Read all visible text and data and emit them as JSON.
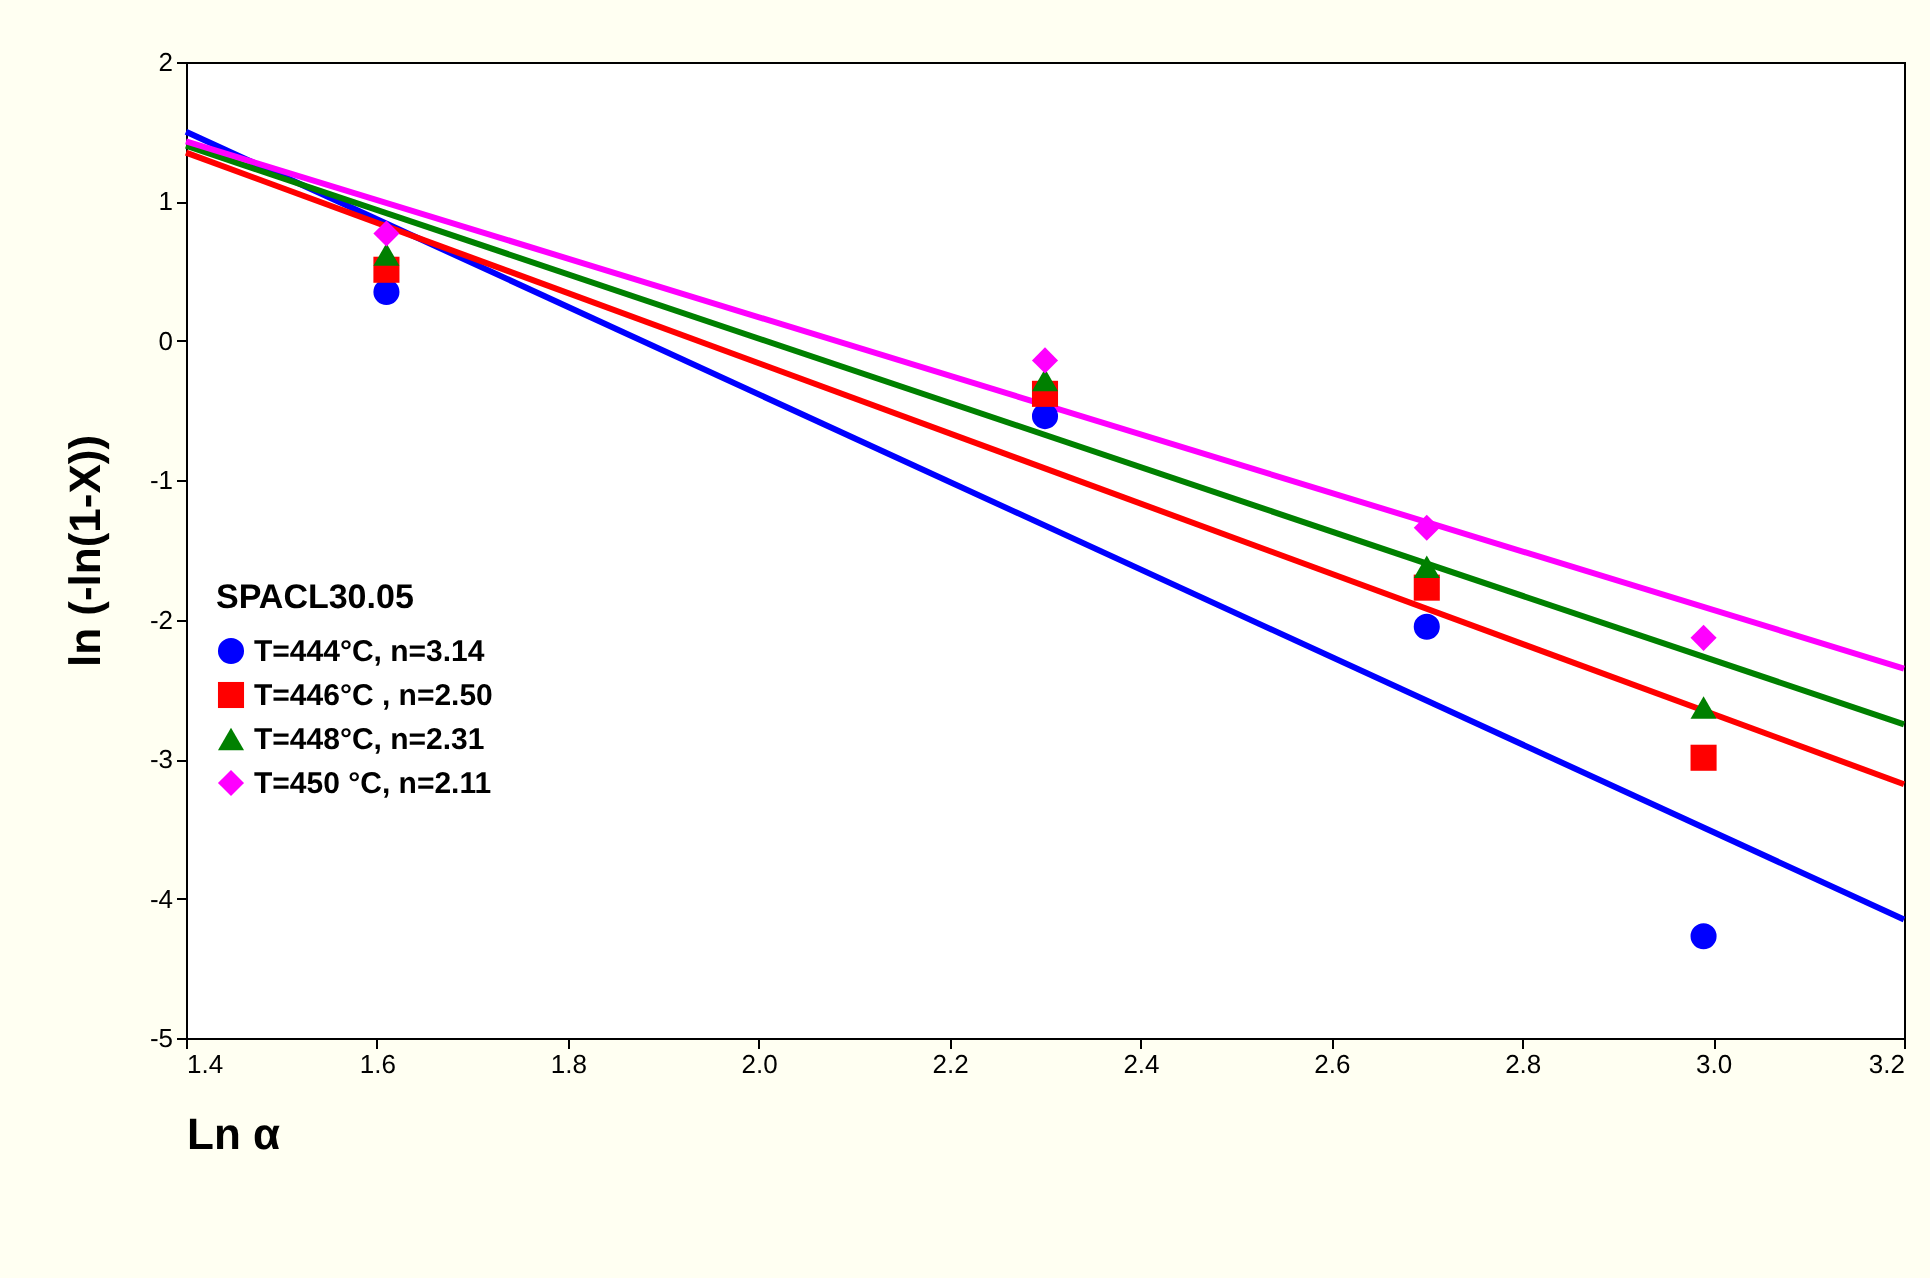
{
  "chart_data": {
    "type": "scatter",
    "xlabel": "Ln α",
    "ylabel": "ln (-ln(1-X))",
    "legend_title": "SPACL30.05",
    "legend": "left",
    "grid": false,
    "xlim": [
      1.4,
      3.2
    ],
    "xticks": [
      1.4,
      1.6,
      1.8,
      {
        "value": 2,
        "label": "2.0"
      },
      2.2,
      2.4,
      2.6,
      2.8,
      {
        "value": 3,
        "label": "3.0"
      },
      3.2
    ],
    "ylim": [
      -5,
      2
    ],
    "yticks": [
      -5,
      -4,
      -3,
      -2,
      -1,
      0,
      1,
      2
    ],
    "series": [
      {
        "name": "T=444°C, n=3.14",
        "color": "#0000ff",
        "marker": "circle",
        "x": [
          1.61,
          2.3,
          2.7,
          2.99
        ],
        "values": [
          0.35,
          -0.54,
          -2.05,
          -4.27
        ]
      },
      {
        "name": "T=446°C , n=2.50",
        "color": "#ff0000",
        "marker": "square",
        "x": [
          1.61,
          2.3,
          2.7,
          2.99
        ],
        "values": [
          0.51,
          -0.38,
          -1.77,
          -2.99
        ]
      },
      {
        "name": "T=448°C,  n=2.31",
        "color": "#008000",
        "marker": "triangle",
        "x": [
          1.61,
          2.3,
          2.7,
          2.99
        ],
        "values": [
          0.62,
          -0.28,
          -1.62,
          -2.63
        ]
      },
      {
        "name": "T=450 °C, n=2.11",
        "color": "#ff00ff",
        "marker": "diamond",
        "x": [
          1.61,
          2.3,
          2.7,
          2.99
        ],
        "values": [
          0.77,
          -0.14,
          -1.34,
          -2.13
        ]
      },
      {
        "type": "line",
        "color": "#0000ff",
        "marker": "none",
        "line_style": "solid",
        "x": [
          1.4,
          3.2
        ],
        "values": [
          1.5,
          -4.15
        ]
      },
      {
        "type": "line",
        "color": "#ff0000",
        "marker": "none",
        "line_style": "solid",
        "x": [
          1.4,
          3.2
        ],
        "values": [
          1.35,
          -3.18
        ]
      },
      {
        "type": "line",
        "color": "#008000",
        "marker": "none",
        "line_style": "solid",
        "x": [
          1.4,
          3.2
        ],
        "values": [
          1.4,
          -2.75
        ]
      },
      {
        "type": "line",
        "color": "#ff00ff",
        "marker": "none",
        "line_style": "solid",
        "x": [
          1.4,
          3.2
        ],
        "values": [
          1.43,
          -2.35
        ]
      }
    ]
  }
}
